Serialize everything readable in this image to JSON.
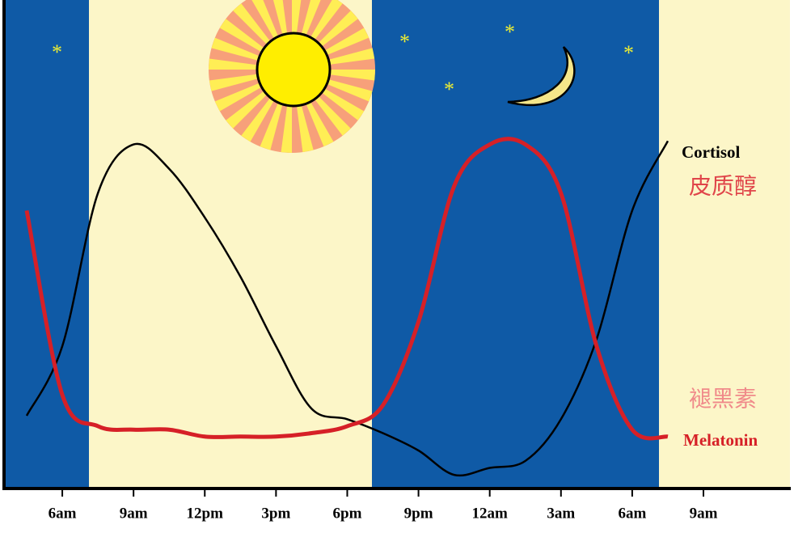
{
  "chart_data": {
    "type": "line",
    "categories": [
      null,
      "6am",
      null,
      "9am",
      null,
      "12pm",
      null,
      "3pm",
      null,
      "6pm",
      null,
      "9pm",
      null,
      "12am",
      null,
      "3am",
      null,
      "6am",
      null,
      "9am"
    ],
    "series": [
      {
        "name": "Cortisol",
        "color": "#000000",
        "values": [
          20,
          40,
          84,
          98,
          91,
          77,
          60,
          40,
          22,
          19,
          15,
          10,
          3,
          5,
          7,
          19,
          42,
          79,
          99,
          null
        ]
      },
      {
        "name": "Melatonin",
        "color": "#d62027",
        "values": [
          79,
          26,
          17,
          16,
          16,
          14,
          14,
          14,
          15,
          17,
          23,
          47,
          86,
          98,
          98,
          84,
          40,
          16,
          14,
          null
        ]
      }
    ],
    "annotations": [
      "皮质醇",
      "褪黑素"
    ],
    "ylim": [
      0,
      100
    ]
  }
}
